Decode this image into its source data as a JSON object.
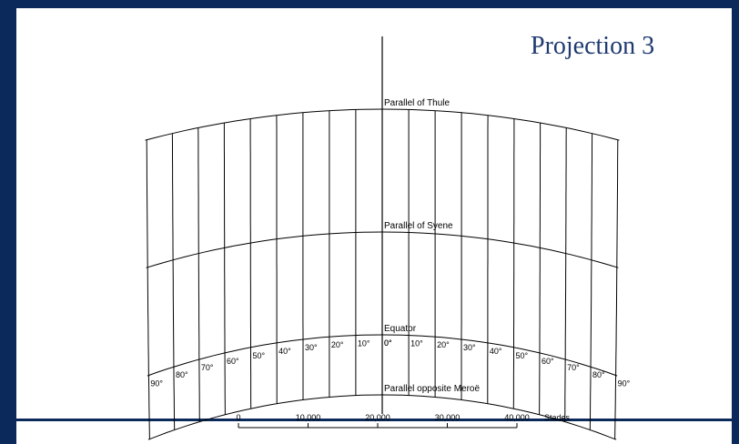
{
  "title": "Projection 3",
  "colors": {
    "frame": "#0b2a5b",
    "title": "#1f3a70",
    "lines": "#000000"
  },
  "parallels": {
    "thule": "Parallel of Thule",
    "syene": "Parallel of Syene",
    "equator": "Equator",
    "meroe": "Parallel opposite Meroë"
  },
  "meridian_labels": {
    "west": [
      "0°",
      "10°",
      "20°",
      "30°",
      "40°",
      "50°",
      "60°",
      "70°",
      "80°",
      "90°"
    ],
    "east": [
      "0°",
      "10°",
      "20°",
      "30°",
      "40°",
      "50°",
      "60°",
      "70°",
      "80°",
      "90°"
    ]
  },
  "scale": {
    "ticks": [
      "0",
      "10,000",
      "20,000",
      "30,000",
      "40,000"
    ],
    "unit": "Stades"
  }
}
